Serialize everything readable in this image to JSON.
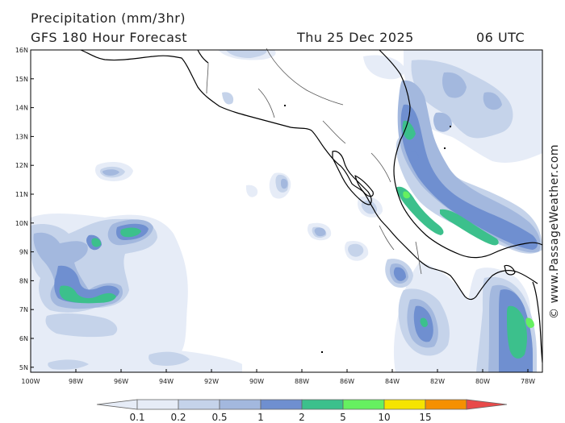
{
  "header": {
    "title": "Precipitation (mm/3hr)",
    "model": "GFS 180 Hour Forecast",
    "date": "Thu 25 Dec 2025",
    "time": "06 UTC"
  },
  "credit": "© www.PassageWeather.com",
  "axes": {
    "lat_labels": [
      "16N",
      "15N",
      "14N",
      "13N",
      "12N",
      "11N",
      "10N",
      "9N",
      "8N",
      "7N",
      "6N",
      "5N"
    ],
    "lon_labels": [
      "100W",
      "98W",
      "96W",
      "94W",
      "92W",
      "90W",
      "88W",
      "86W",
      "84W",
      "82W",
      "80W",
      "78W"
    ]
  },
  "legend": {
    "labels": [
      "0.1",
      "0.2",
      "0.5",
      "1",
      "2",
      "5",
      "10",
      "15"
    ],
    "colors": [
      "#e6ecf7",
      "#c5d3ea",
      "#a3b8de",
      "#6f8fd0",
      "#3cc08c",
      "#66f060",
      "#f5e400",
      "#f59000",
      "#e84a4a"
    ]
  },
  "palette": {
    "light": "#e6ecf7",
    "pale": "#c5d3ea",
    "mid": "#a3b8de",
    "blue": "#6f8fd0",
    "teal": "#3cc08c"
  }
}
